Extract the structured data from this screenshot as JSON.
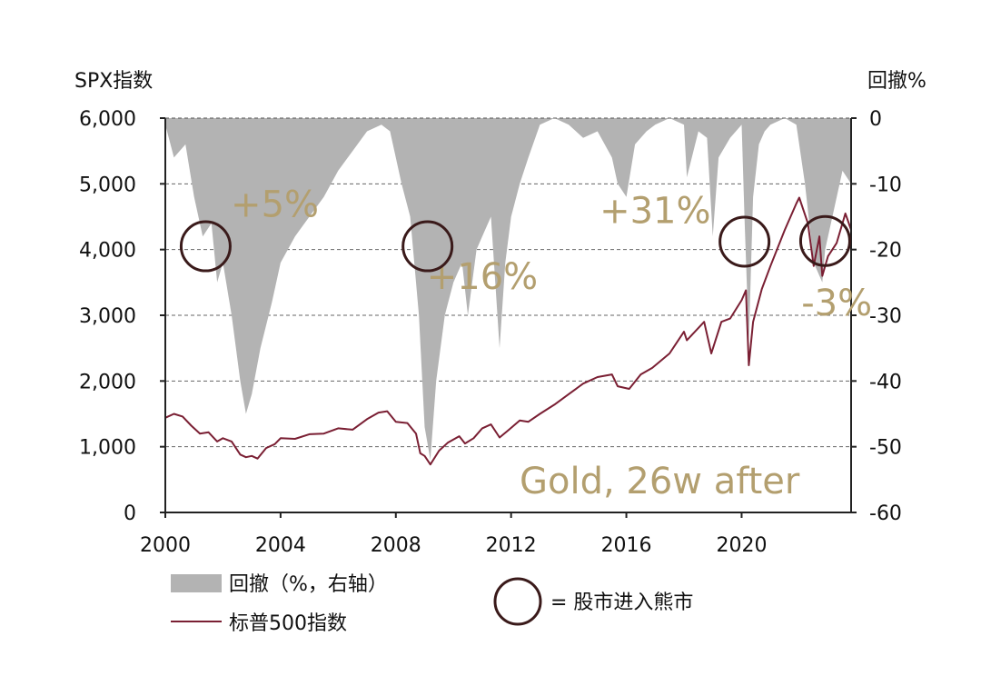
{
  "chart_data": {
    "type": "line",
    "left_axis_label": "SPX指数",
    "right_axis_label": "回撤%",
    "left_ylim": [
      0,
      6000
    ],
    "right_ylim": [
      -60,
      0
    ],
    "xlim": [
      2000,
      2023.8
    ],
    "left_ticks": [
      "6,000",
      "5,000",
      "4,000",
      "3,000",
      "2,000",
      "1,000",
      "0"
    ],
    "left_tick_values": [
      6000,
      5000,
      4000,
      3000,
      2000,
      1000,
      0
    ],
    "right_ticks": [
      "0",
      "-10",
      "-20",
      "-30",
      "-40",
      "-50",
      "-60"
    ],
    "right_tick_values": [
      0,
      -10,
      -20,
      -30,
      -40,
      -50,
      -60
    ],
    "x_ticks": [
      "2000",
      "2004",
      "2008",
      "2012",
      "2016",
      "2020"
    ],
    "x_tick_values": [
      2000,
      2004,
      2008,
      2012,
      2016,
      2020
    ],
    "grid": "horizontal-dashed",
    "colors": {
      "drawdown": "#b3b3b3",
      "spx": "#7a1f33",
      "annotation": "#b39f6f",
      "circle": "#3a1a1a"
    },
    "series": [
      {
        "name": "回撤（%，右轴）",
        "kind": "area",
        "points": [
          [
            2000.0,
            -1
          ],
          [
            2000.3,
            -6
          ],
          [
            2000.7,
            -4
          ],
          [
            2001.0,
            -12
          ],
          [
            2001.3,
            -18
          ],
          [
            2001.6,
            -16
          ],
          [
            2001.8,
            -25
          ],
          [
            2002.0,
            -22
          ],
          [
            2002.3,
            -30
          ],
          [
            2002.6,
            -40
          ],
          [
            2002.8,
            -45
          ],
          [
            2003.0,
            -42
          ],
          [
            2003.3,
            -35
          ],
          [
            2003.7,
            -28
          ],
          [
            2004.0,
            -22
          ],
          [
            2004.5,
            -18
          ],
          [
            2005.0,
            -15
          ],
          [
            2005.5,
            -12
          ],
          [
            2006.0,
            -8
          ],
          [
            2006.5,
            -5
          ],
          [
            2007.0,
            -2
          ],
          [
            2007.5,
            -1
          ],
          [
            2007.8,
            -2
          ],
          [
            2008.2,
            -10
          ],
          [
            2008.5,
            -15
          ],
          [
            2008.8,
            -30
          ],
          [
            2009.0,
            -47
          ],
          [
            2009.2,
            -52
          ],
          [
            2009.4,
            -40
          ],
          [
            2009.7,
            -30
          ],
          [
            2010.0,
            -25
          ],
          [
            2010.3,
            -22
          ],
          [
            2010.5,
            -30
          ],
          [
            2010.8,
            -20
          ],
          [
            2011.0,
            -18
          ],
          [
            2011.3,
            -15
          ],
          [
            2011.6,
            -35
          ],
          [
            2011.8,
            -22
          ],
          [
            2012.0,
            -15
          ],
          [
            2012.3,
            -10
          ],
          [
            2012.6,
            -6
          ],
          [
            2013.0,
            -1
          ],
          [
            2013.5,
            0
          ],
          [
            2014.0,
            -1
          ],
          [
            2014.5,
            -3
          ],
          [
            2015.0,
            -2
          ],
          [
            2015.5,
            -6
          ],
          [
            2015.7,
            -10
          ],
          [
            2016.0,
            -12
          ],
          [
            2016.3,
            -4
          ],
          [
            2016.7,
            -2
          ],
          [
            2017.0,
            -1
          ],
          [
            2017.5,
            0
          ],
          [
            2018.0,
            -1
          ],
          [
            2018.1,
            -9
          ],
          [
            2018.5,
            -2
          ],
          [
            2018.8,
            -3
          ],
          [
            2019.0,
            -18
          ],
          [
            2019.2,
            -6
          ],
          [
            2019.6,
            -3
          ],
          [
            2020.0,
            -1
          ],
          [
            2020.1,
            -15
          ],
          [
            2020.25,
            -34
          ],
          [
            2020.4,
            -12
          ],
          [
            2020.6,
            -4
          ],
          [
            2020.8,
            -2
          ],
          [
            2021.0,
            -1
          ],
          [
            2021.5,
            0
          ],
          [
            2021.9,
            -1
          ],
          [
            2022.2,
            -10
          ],
          [
            2022.5,
            -22
          ],
          [
            2022.8,
            -25
          ],
          [
            2022.9,
            -20
          ],
          [
            2023.2,
            -14
          ],
          [
            2023.5,
            -8
          ],
          [
            2023.8,
            -10
          ]
        ]
      },
      {
        "name": "标普500指数",
        "kind": "line",
        "points": [
          [
            2000.0,
            1440
          ],
          [
            2000.3,
            1500
          ],
          [
            2000.6,
            1460
          ],
          [
            2000.9,
            1320
          ],
          [
            2001.2,
            1200
          ],
          [
            2001.5,
            1220
          ],
          [
            2001.8,
            1080
          ],
          [
            2002.0,
            1130
          ],
          [
            2002.3,
            1080
          ],
          [
            2002.6,
            880
          ],
          [
            2002.8,
            840
          ],
          [
            2003.0,
            860
          ],
          [
            2003.2,
            820
          ],
          [
            2003.5,
            980
          ],
          [
            2003.8,
            1040
          ],
          [
            2004.0,
            1130
          ],
          [
            2004.5,
            1120
          ],
          [
            2005.0,
            1190
          ],
          [
            2005.5,
            1200
          ],
          [
            2006.0,
            1280
          ],
          [
            2006.5,
            1260
          ],
          [
            2007.0,
            1420
          ],
          [
            2007.4,
            1520
          ],
          [
            2007.7,
            1540
          ],
          [
            2008.0,
            1380
          ],
          [
            2008.4,
            1360
          ],
          [
            2008.7,
            1200
          ],
          [
            2008.85,
            900
          ],
          [
            2009.0,
            860
          ],
          [
            2009.2,
            730
          ],
          [
            2009.5,
            940
          ],
          [
            2009.8,
            1060
          ],
          [
            2010.2,
            1160
          ],
          [
            2010.4,
            1050
          ],
          [
            2010.7,
            1130
          ],
          [
            2011.0,
            1280
          ],
          [
            2011.3,
            1340
          ],
          [
            2011.6,
            1140
          ],
          [
            2011.9,
            1250
          ],
          [
            2012.3,
            1400
          ],
          [
            2012.6,
            1380
          ],
          [
            2013.0,
            1500
          ],
          [
            2013.5,
            1640
          ],
          [
            2014.0,
            1800
          ],
          [
            2014.5,
            1960
          ],
          [
            2015.0,
            2060
          ],
          [
            2015.5,
            2100
          ],
          [
            2015.7,
            1920
          ],
          [
            2016.1,
            1880
          ],
          [
            2016.5,
            2100
          ],
          [
            2016.9,
            2200
          ],
          [
            2017.5,
            2420
          ],
          [
            2018.0,
            2750
          ],
          [
            2018.1,
            2620
          ],
          [
            2018.7,
            2900
          ],
          [
            2018.95,
            2420
          ],
          [
            2019.3,
            2900
          ],
          [
            2019.6,
            2950
          ],
          [
            2020.0,
            3230
          ],
          [
            2020.15,
            3380
          ],
          [
            2020.25,
            2240
          ],
          [
            2020.4,
            2900
          ],
          [
            2020.7,
            3400
          ],
          [
            2021.0,
            3750
          ],
          [
            2021.5,
            4300
          ],
          [
            2021.9,
            4700
          ],
          [
            2022.0,
            4790
          ],
          [
            2022.3,
            4400
          ],
          [
            2022.5,
            3750
          ],
          [
            2022.7,
            4200
          ],
          [
            2022.8,
            3600
          ],
          [
            2023.0,
            3900
          ],
          [
            2023.3,
            4100
          ],
          [
            2023.6,
            4550
          ],
          [
            2023.8,
            4300
          ]
        ]
      }
    ],
    "annotations": [
      {
        "text": "+5%",
        "x": 2003.8,
        "y": 4500
      },
      {
        "text": "+16%",
        "x": 2011.0,
        "y": 3400
      },
      {
        "text": "+31%",
        "x": 2017.0,
        "y": 4400
      },
      {
        "text": "-3%",
        "x": 2023.3,
        "y": 3000
      }
    ],
    "bear_market_circles": [
      {
        "x": 2001.4,
        "y": 4050
      },
      {
        "x": 2009.1,
        "y": 4050
      },
      {
        "x": 2020.1,
        "y": 4120
      },
      {
        "x": 2022.9,
        "y": 4130
      }
    ],
    "corner_note": "Gold, 26w after",
    "legend": [
      {
        "label": "回撤（%，右轴）",
        "swatch": "area"
      },
      {
        "label": "标普500指数",
        "swatch": "line"
      },
      {
        "label": "= 股市进入熊市",
        "swatch": "circle"
      }
    ]
  }
}
